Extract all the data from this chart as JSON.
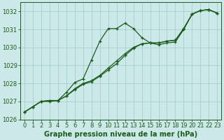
{
  "background_color": "#cce8e8",
  "grid_color": "#99cccc",
  "line_color": "#1a5c1a",
  "marker_color": "#1a5c1a",
  "xlabel": "Graphe pression niveau de la mer (hPa)",
  "ylim": [
    1026,
    1032.5
  ],
  "xlim": [
    -0.5,
    23.5
  ],
  "yticks": [
    1026,
    1027,
    1028,
    1029,
    1030,
    1031,
    1032
  ],
  "xticks": [
    0,
    1,
    2,
    3,
    4,
    5,
    6,
    7,
    8,
    9,
    10,
    11,
    12,
    13,
    14,
    15,
    16,
    17,
    18,
    19,
    20,
    21,
    22,
    23
  ],
  "series1_x": [
    0,
    1,
    2,
    3,
    4,
    5,
    6,
    7,
    8,
    9,
    10,
    11,
    12,
    13,
    14,
    15,
    16,
    17,
    18,
    19,
    20,
    21,
    22,
    23
  ],
  "series1_y": [
    1026.4,
    1026.7,
    1027.0,
    1027.0,
    1027.05,
    1027.5,
    1028.05,
    1028.25,
    1029.3,
    1030.35,
    1031.05,
    1031.05,
    1031.35,
    1031.05,
    1030.55,
    1030.25,
    1030.15,
    1030.25,
    1030.3,
    1031.0,
    1031.85,
    1032.05,
    1032.1,
    1031.9
  ],
  "series2_x": [
    0,
    1,
    2,
    3,
    4,
    5,
    6,
    7,
    8,
    9,
    10,
    11,
    12,
    13,
    14,
    15,
    16,
    17,
    18,
    19,
    20,
    21,
    22,
    23
  ],
  "series2_y": [
    1026.4,
    1026.7,
    1027.0,
    1027.05,
    1027.05,
    1027.3,
    1027.7,
    1028.0,
    1028.15,
    1028.45,
    1028.85,
    1029.25,
    1029.65,
    1030.0,
    1030.2,
    1030.25,
    1030.25,
    1030.35,
    1030.4,
    1031.05,
    1031.85,
    1032.05,
    1032.1,
    1031.9
  ],
  "series3_x": [
    0,
    1,
    2,
    3,
    4,
    5,
    6,
    7,
    8,
    9,
    10,
    11,
    12,
    13,
    14,
    15,
    16,
    17,
    18,
    19,
    20,
    21,
    22,
    23
  ],
  "series3_y": [
    1026.4,
    1026.7,
    1027.0,
    1027.05,
    1027.05,
    1027.3,
    1027.65,
    1027.95,
    1028.1,
    1028.4,
    1028.75,
    1029.1,
    1029.55,
    1029.95,
    1030.2,
    1030.25,
    1030.25,
    1030.35,
    1030.4,
    1031.05,
    1031.85,
    1032.05,
    1032.1,
    1031.9
  ],
  "tick_fontsize": 6.0,
  "xlabel_fontsize": 7.0,
  "xlabel_bold": true,
  "marker_size": 3.5,
  "line_width": 0.9
}
